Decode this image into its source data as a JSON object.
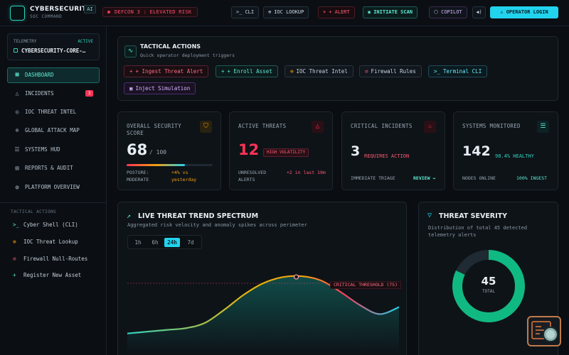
{
  "header": {
    "brand_name": "CYBERSECURITY",
    "brand_sub": "SOC COMMAND",
    "ai_badge": "AI",
    "defcon": "DEFCON 3 : ELEVATED RISK",
    "buttons": [
      {
        "icon": "terminal-icon",
        "label": "CLI"
      },
      {
        "icon": "globe-icon",
        "label": "IOC LOOKUP"
      },
      {
        "icon": "plus-icon",
        "label": "+ ALERT"
      },
      {
        "icon": "radar-icon",
        "label": "INITIATE SCAN"
      },
      {
        "icon": "copilot-icon",
        "label": "COPILOT"
      },
      {
        "icon": "speaker-icon",
        "label": ""
      }
    ],
    "login": "OPERATOR LOGIN"
  },
  "sidebar": {
    "telemetry_label": "TELEMETRY",
    "telemetry_status": "ACTIVE",
    "telemetry_target": "CYBERSECURITY-CORE-…",
    "nav": [
      {
        "icon": "dashboard-icon",
        "label": "DASHBOARD",
        "active": true
      },
      {
        "icon": "alert-triangle-icon",
        "label": "INCIDENTS",
        "badge": "3"
      },
      {
        "icon": "target-icon",
        "label": "IOC THREAT INTEL"
      },
      {
        "icon": "globe-icon",
        "label": "GLOBAL ATTACK MAP"
      },
      {
        "icon": "server-icon",
        "label": "SYSTEMS HUD"
      },
      {
        "icon": "document-icon",
        "label": "REPORTS & AUDIT"
      },
      {
        "icon": "compass-icon",
        "label": "PLATFORM OVERVIEW"
      }
    ],
    "tactical_heading": "TACTICAL ACTIONS",
    "tactical": [
      {
        "icon": "terminal-icon",
        "label": "Cyber Shell (CLI)"
      },
      {
        "icon": "globe-icon",
        "label": "IOC Threat Lookup"
      },
      {
        "icon": "ban-icon",
        "label": "Firewall Null-Routes"
      },
      {
        "icon": "plus-icon",
        "label": "Register New Asset"
      }
    ]
  },
  "tactical_panel": {
    "title": "TACTICAL ACTIONS",
    "subtitle": "Quick operator deployment triggers",
    "buttons": [
      {
        "label": "+ Ingest Threat Alert"
      },
      {
        "label": "+ Enroll Asset"
      },
      {
        "label": "IOC Threat Intel"
      },
      {
        "label": "Firewall Rules"
      },
      {
        "label": "Terminal CLI"
      },
      {
        "label": "Inject Simulation"
      }
    ]
  },
  "stats": {
    "score": {
      "label": "OVERALL SECURITY SCORE",
      "value": "68",
      "max": "/ 100",
      "progress": 0.68,
      "posture": "POSTURE: MODERATE",
      "delta": "+4% vs yesterday"
    },
    "threats": {
      "label": "ACTIVE THREATS",
      "value": "12",
      "tag": "HIGH VOLATILITY",
      "note": "UNRESOLVED ALERTS",
      "delta": "+2 in last 10m"
    },
    "incidents": {
      "label": "CRITICAL INCIDENTS",
      "value": "3",
      "tag": "REQUIRES ACTION",
      "note": "IMMEDIATE TRIAGE",
      "link": "REVIEW →"
    },
    "systems": {
      "label": "SYSTEMS MONITORED",
      "value": "142",
      "tag": "98.4% HEALTHY",
      "note": "NODES ONLINE",
      "ingest": "100% INGEST"
    }
  },
  "trend": {
    "title": "LIVE THREAT TREND SPECTRUM",
    "subtitle": "Aggregated risk velocity and anomaly spikes across perimeter",
    "ranges": [
      "1h",
      "6h",
      "24h",
      "7d"
    ],
    "selected_range": "24h",
    "threshold_label": "CRITICAL THRESHOLD (75)"
  },
  "chart_data": {
    "type": "area",
    "series": [
      {
        "values": [
          18,
          20,
          22,
          24,
          30,
          45,
          62,
          75,
          82,
          83,
          78,
          65,
          50,
          40,
          48
        ]
      }
    ],
    "threshold": 75,
    "ylim": [
      0,
      100
    ]
  },
  "severity": {
    "title": "THREAT SEVERITY",
    "subtitle": "Distribution of total 45 detected telemetry alerts",
    "total": "45",
    "total_label": "TOTAL",
    "share": 0.82
  },
  "colors": {
    "accent": "#22d3ee",
    "teal": "#2dd4bf",
    "danger": "#ff3355",
    "success": "#10b981"
  }
}
